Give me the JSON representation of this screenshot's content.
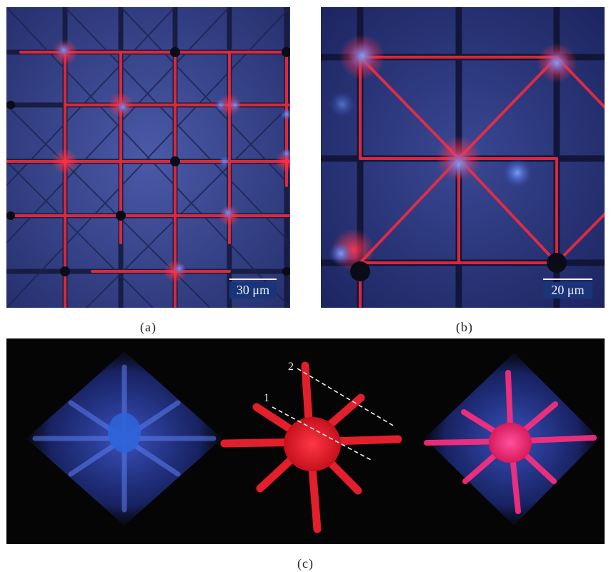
{
  "figure": {
    "panels": [
      {
        "id": "a",
        "caption": "(a)",
        "scale_bar_label": "30 μm"
      },
      {
        "id": "b",
        "caption": "(b)",
        "scale_bar_label": "20 μm"
      },
      {
        "id": "c",
        "caption": "(c)",
        "annotations": [
          "1",
          "2"
        ]
      }
    ]
  },
  "colors": {
    "nucleus_blue": "#3a6ad8",
    "actin_red": "#ff2a3a",
    "background_blue": "#2b3378",
    "panel_c_background": "#050505"
  }
}
